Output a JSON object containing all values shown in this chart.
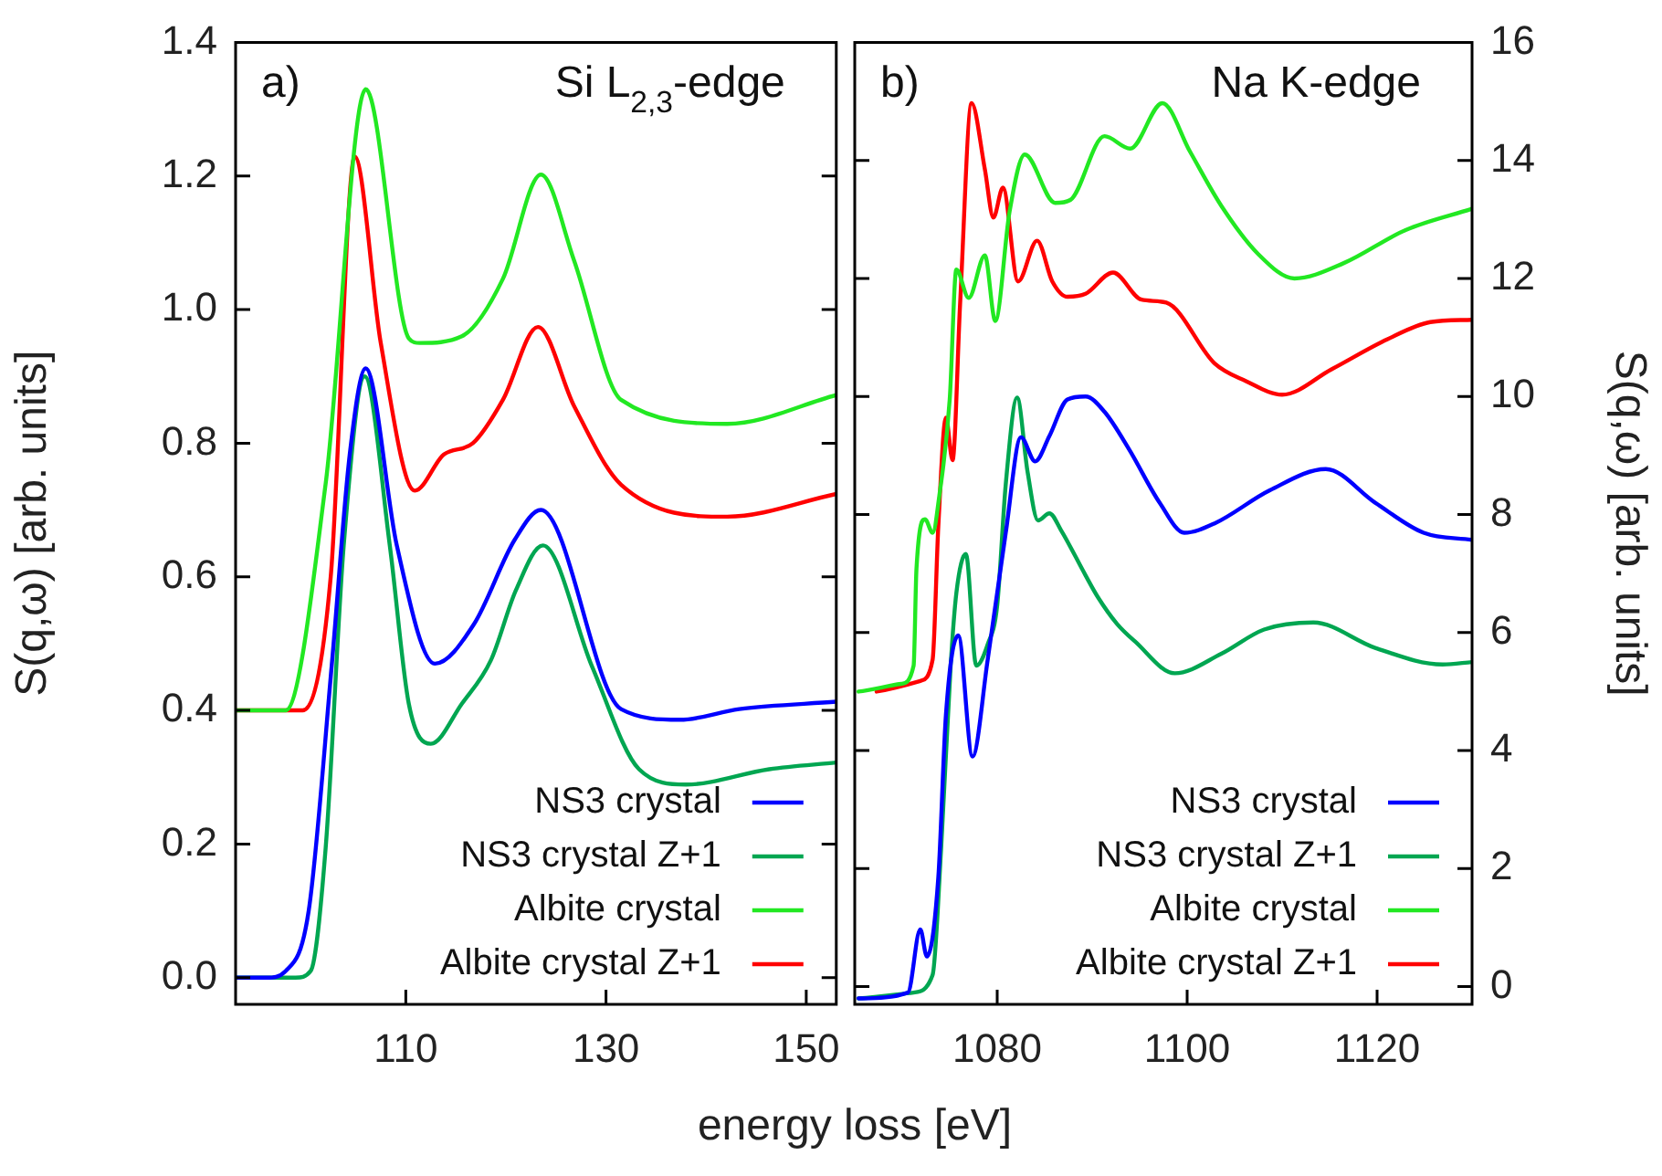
{
  "chart_data": [
    {
      "type": "line",
      "xlabel": "energy loss [eV]",
      "ylabel": "S(q,ω) [arb. units]",
      "annotations": [
        "a)",
        "Si L$_{2,3}$-edge"
      ],
      "xlim": [
        93,
        153
      ],
      "xticks": [
        110,
        130,
        150
      ],
      "ylim": [
        -0.04,
        1.4
      ],
      "yticks": [
        {
          "value": 0,
          "label": "0.0"
        },
        {
          "value": 0.2,
          "label": "0.2"
        },
        {
          "value": 0.4,
          "label": "0.4"
        },
        {
          "value": 0.6,
          "label": "0.6"
        },
        {
          "value": 0.8,
          "label": "0.8"
        },
        {
          "value": 1.0,
          "label": "1.0"
        },
        {
          "value": 1.2,
          "label": "1.2"
        },
        {
          "value": 1.4,
          "label": "1.4"
        }
      ],
      "legend": "bottom right",
      "marker": "none",
      "line_style": "solid",
      "series": [
        {
          "name": "NS3 crystal",
          "color": "#0000ff",
          "x": [
            93,
            96.1,
            98,
            100.3,
            102.6,
            104.4,
            106,
            109.1,
            112.9,
            116.8,
            120.9,
            123.5,
            131.5,
            137.4,
            143.3,
            153
          ],
          "values": [
            0,
            0,
            0.01,
            0.1,
            0.467,
            0.783,
            0.912,
            0.647,
            0.47,
            0.529,
            0.656,
            0.7,
            0.402,
            0.386,
            0.402,
            0.413
          ]
        },
        {
          "name": "NS3 crystal Z+1",
          "color": "#00a651",
          "x": [
            93,
            99,
            100.5,
            102,
            103.8,
            105.9,
            108.4,
            110.3,
            112.5,
            115.6,
            118.5,
            121,
            123.7,
            128.6,
            133.3,
            138,
            146.3,
            153
          ],
          "values": [
            0,
            0,
            0.01,
            0.195,
            0.647,
            0.9,
            0.647,
            0.41,
            0.35,
            0.41,
            0.475,
            0.58,
            0.647,
            0.466,
            0.312,
            0.289,
            0.312,
            0.322
          ]
        },
        {
          "name": "Albite crystal",
          "color": "#22e822",
          "x": [
            93,
            98,
            102,
            106,
            110.3,
            111.4,
            115.6,
            119.7,
            123.5,
            126.8,
            131.5,
            142.1,
            153
          ],
          "values": [
            0.4,
            0.4,
            0.74,
            1.33,
            0.957,
            0.95,
            0.96,
            1.046,
            1.202,
            1.074,
            0.865,
            0.829,
            0.872
          ]
        },
        {
          "name": "Albite crystal Z+1",
          "color": "#ff0000",
          "x": [
            93,
            99.7,
            102.5,
            104.9,
            107.5,
            110.9,
            113.8,
            116.7,
            119.7,
            123.2,
            126.8,
            131.5,
            142.1,
            153
          ],
          "values": [
            0.4,
            0.4,
            0.6,
            1.229,
            0.95,
            0.729,
            0.783,
            0.8,
            0.865,
            0.974,
            0.856,
            0.738,
            0.69,
            0.724
          ]
        }
      ]
    },
    {
      "type": "line",
      "y2label": "S(q,ω) [arb. units]",
      "annotations": [
        "b)",
        "Na K-edge"
      ],
      "xlim": [
        1065,
        1130
      ],
      "xticks": [
        1080,
        1100,
        1120
      ],
      "y2lim": [
        -0.3,
        16
      ],
      "y2ticks": [
        0,
        2,
        4,
        6,
        8,
        10,
        12,
        14,
        16
      ],
      "legend": "bottom right",
      "marker": "none",
      "line_style": "solid",
      "series": [
        {
          "name": "NS3 crystal",
          "color": "#0000ff",
          "axis": "y2",
          "x": [
            1065.4,
            1070.6,
            1071.9,
            1072.6,
            1073.8,
            1074.6,
            1075.9,
            1077.4,
            1079,
            1080.9,
            1082.5,
            1084,
            1085.5,
            1087.4,
            1089.3,
            1091.3,
            1093.9,
            1097.1,
            1099.7,
            1102.9,
            1108.7,
            1114.6,
            1119.8,
            1124.9,
            1130
          ],
          "values": [
            -0.2,
            -0.1,
            0.97,
            0.51,
            1.85,
            4.6,
            5.95,
            3.9,
            5.54,
            7.69,
            9.31,
            8.9,
            9.33,
            9.95,
            10.0,
            9.74,
            9.1,
            8.2,
            7.69,
            7.85,
            8.41,
            8.77,
            8.2,
            7.69,
            7.57
          ]
        },
        {
          "name": "NS3 crystal Z+1",
          "color": "#00a651",
          "axis": "y2",
          "x": [
            1065.4,
            1071.2,
            1073.2,
            1074.1,
            1075.1,
            1075.7,
            1076.7,
            1077.8,
            1079,
            1080,
            1080.9,
            1082.1,
            1083.2,
            1084.3,
            1085.5,
            1086.7,
            1089.3,
            1090.6,
            1092.6,
            1094.5,
            1098.7,
            1103.6,
            1108.1,
            1113.3,
            1119.8,
            1126.9,
            1130
          ],
          "values": [
            -0.2,
            -0.1,
            0.2,
            2.36,
            5.44,
            6.67,
            7.33,
            5.44,
            5.8,
            6.46,
            8.51,
            9.98,
            8.72,
            7.9,
            8.02,
            7.74,
            6.97,
            6.6,
            6.15,
            5.85,
            5.31,
            5.64,
            6.05,
            6.17,
            5.74,
            5.46,
            5.5
          ]
        },
        {
          "name": "Albite crystal",
          "color": "#22e822",
          "axis": "y2",
          "x": [
            1065.4,
            1069.9,
            1071.2,
            1071.5,
            1072.4,
            1073.2,
            1073.9,
            1075,
            1075.7,
            1077,
            1078.7,
            1079.8,
            1081.3,
            1082.9,
            1086.1,
            1087.7,
            1091.3,
            1094,
            1097.4,
            1100.3,
            1103.6,
            1107.5,
            1111.3,
            1116.5,
            1123,
            1130
          ],
          "values": [
            5.0,
            5.13,
            5.44,
            7.08,
            7.92,
            7.69,
            8.31,
            9.95,
            12.15,
            11.67,
            12.39,
            11.28,
            13.13,
            14.1,
            13.28,
            13.33,
            14.41,
            14.2,
            14.97,
            14.15,
            13.23,
            12.41,
            12.0,
            12.26,
            12.82,
            13.18
          ]
        },
        {
          "name": "Albite crystal Z+1",
          "color": "#ff0000",
          "axis": "y2",
          "x": [
            1067.3,
            1071.9,
            1073.2,
            1073.8,
            1074.6,
            1075.3,
            1076.1,
            1077.3,
            1078.7,
            1079.6,
            1080.6,
            1082.2,
            1084.2,
            1085.8,
            1087.4,
            1089.3,
            1092.2,
            1095.2,
            1097.8,
            1102.9,
            1106.2,
            1110,
            1115.2,
            1121.1,
            1125.6,
            1130
          ],
          "values": [
            5.0,
            5.18,
            5.54,
            7.8,
            9.64,
            8.92,
            11.59,
            14.97,
            13.85,
            13.03,
            13.54,
            11.95,
            12.64,
            11.95,
            11.69,
            11.74,
            12.1,
            11.64,
            11.59,
            10.56,
            10.26,
            10.03,
            10.46,
            10.97,
            11.26,
            11.3
          ]
        }
      ]
    }
  ]
}
